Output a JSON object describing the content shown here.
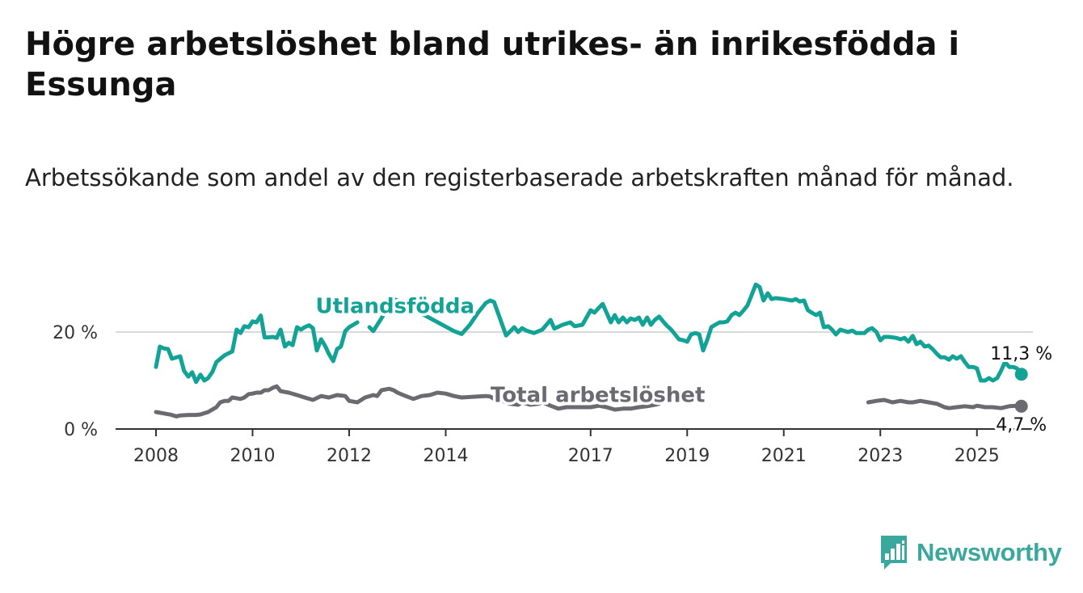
{
  "title": "Högre arbetslöshet bland utrikes- än inrikesfödda i Essunga",
  "subtitle": "Arbetssökande som andel av den registerbaserade arbetskraften månad för månad.",
  "brand": {
    "name": "Newsworthy",
    "icon": "bar-chart-speech-bubble-icon",
    "color": "#3aa89c"
  },
  "chart_data": {
    "type": "line",
    "xlabel": "",
    "ylabel": "",
    "ylim": [
      0,
      30
    ],
    "yticks": [
      0,
      20
    ],
    "ytick_labels": [
      "0 %",
      "20 %"
    ],
    "xlim": [
      2007.9,
      2025.9
    ],
    "xticks": [
      2008,
      2010,
      2012,
      2014,
      2017,
      2019,
      2021,
      2023,
      2025
    ],
    "grid": true,
    "legend": "direct labels on lines",
    "series": [
      {
        "name": "Utlandsfödda",
        "color": "#13a296",
        "label_at": [
          2012.95,
          23.9
        ],
        "end_label": "11,3 %",
        "points": [
          [
            2008.0,
            12.8
          ],
          [
            2008.08,
            17.0
          ],
          [
            2008.17,
            16.6
          ],
          [
            2008.25,
            16.5
          ],
          [
            2008.33,
            14.5
          ],
          [
            2008.5,
            15.0
          ],
          [
            2008.58,
            12.0
          ],
          [
            2008.67,
            10.8
          ],
          [
            2008.75,
            11.7
          ],
          [
            2008.83,
            9.7
          ],
          [
            2008.92,
            11.2
          ],
          [
            2009.0,
            10.0
          ],
          [
            2009.08,
            10.5
          ],
          [
            2009.17,
            11.8
          ],
          [
            2009.25,
            13.8
          ],
          [
            2009.42,
            15.2
          ],
          [
            2009.58,
            16.0
          ],
          [
            2009.67,
            20.5
          ],
          [
            2009.75,
            19.8
          ],
          [
            2009.83,
            21.2
          ],
          [
            2009.92,
            21.0
          ],
          [
            2010.0,
            22.2
          ],
          [
            2010.08,
            22.0
          ],
          [
            2010.17,
            23.4
          ],
          [
            2010.25,
            18.9
          ],
          [
            2010.33,
            18.9
          ],
          [
            2010.42,
            19.0
          ],
          [
            2010.5,
            18.8
          ],
          [
            2010.58,
            20.5
          ],
          [
            2010.67,
            17.0
          ],
          [
            2010.75,
            17.8
          ],
          [
            2010.83,
            17.3
          ],
          [
            2010.92,
            21.0
          ],
          [
            2011.0,
            20.5
          ],
          [
            2011.08,
            21.0
          ],
          [
            2011.17,
            21.4
          ],
          [
            2011.25,
            20.8
          ],
          [
            2011.33,
            16.2
          ],
          [
            2011.42,
            18.5
          ],
          [
            2011.5,
            17.2
          ],
          [
            2011.58,
            15.5
          ],
          [
            2011.67,
            14.0
          ],
          [
            2011.75,
            16.5
          ],
          [
            2011.83,
            17.0
          ],
          [
            2011.92,
            20.2
          ],
          [
            2012.0,
            21.0
          ],
          [
            2012.17,
            22.0
          ]
        ],
        "points_2": [
          [
            2012.42,
            21.0
          ],
          [
            2012.5,
            20.2
          ],
          [
            2012.92,
            26.8
          ],
          [
            2013.0,
            26.5
          ],
          [
            2014.17,
            20.2
          ],
          [
            2014.33,
            19.6
          ],
          [
            2014.5,
            21.5
          ],
          [
            2014.67,
            24.0
          ],
          [
            2014.83,
            26.0
          ],
          [
            2014.92,
            26.5
          ],
          [
            2015.0,
            26.2
          ],
          [
            2015.17,
            21.5
          ],
          [
            2015.25,
            19.3
          ],
          [
            2015.42,
            21.0
          ],
          [
            2015.5,
            20.0
          ],
          [
            2015.58,
            20.8
          ],
          [
            2015.67,
            20.3
          ],
          [
            2015.83,
            19.8
          ],
          [
            2016.0,
            20.5
          ],
          [
            2016.17,
            22.5
          ],
          [
            2016.25,
            20.7
          ],
          [
            2016.42,
            21.5
          ],
          [
            2016.58,
            22.0
          ],
          [
            2016.67,
            21.2
          ],
          [
            2016.83,
            21.5
          ],
          [
            2017.0,
            24.5
          ],
          [
            2017.08,
            24.0
          ],
          [
            2017.17,
            25.0
          ],
          [
            2017.25,
            25.8
          ],
          [
            2017.33,
            24.0
          ],
          [
            2017.42,
            22.0
          ],
          [
            2017.5,
            23.5
          ],
          [
            2017.58,
            22.0
          ],
          [
            2017.67,
            23.0
          ],
          [
            2017.75,
            22.0
          ],
          [
            2017.83,
            22.8
          ],
          [
            2017.92,
            22.5
          ],
          [
            2018.0,
            23.0
          ],
          [
            2018.08,
            21.5
          ],
          [
            2018.17,
            23.0
          ],
          [
            2018.25,
            21.5
          ],
          [
            2018.33,
            22.5
          ],
          [
            2018.42,
            23.2
          ],
          [
            2018.5,
            22.2
          ],
          [
            2018.58,
            21.3
          ],
          [
            2018.67,
            20.5
          ],
          [
            2018.83,
            18.5
          ],
          [
            2018.92,
            18.3
          ],
          [
            2019.0,
            18.0
          ],
          [
            2019.08,
            19.5
          ],
          [
            2019.17,
            19.8
          ],
          [
            2019.25,
            19.5
          ],
          [
            2019.33,
            16.2
          ],
          [
            2019.42,
            18.5
          ],
          [
            2019.5,
            21.0
          ],
          [
            2019.58,
            21.5
          ],
          [
            2019.67,
            22.0
          ],
          [
            2019.75,
            22.0
          ],
          [
            2019.83,
            22.2
          ],
          [
            2019.92,
            23.5
          ],
          [
            2020.0,
            24.0
          ],
          [
            2020.08,
            23.5
          ],
          [
            2020.17,
            24.5
          ],
          [
            2020.25,
            25.5
          ],
          [
            2020.33,
            27.5
          ],
          [
            2020.42,
            29.8
          ],
          [
            2020.5,
            29.3
          ],
          [
            2020.58,
            26.5
          ],
          [
            2020.67,
            28.0
          ],
          [
            2020.75,
            26.8
          ],
          [
            2020.83,
            27.0
          ],
          [
            2021.0,
            26.8
          ],
          [
            2021.17,
            26.5
          ],
          [
            2021.25,
            26.8
          ],
          [
            2021.33,
            26.3
          ],
          [
            2021.42,
            26.5
          ],
          [
            2021.5,
            24.5
          ],
          [
            2021.58,
            24.0
          ],
          [
            2021.67,
            23.5
          ],
          [
            2021.75,
            24.0
          ],
          [
            2021.83,
            21.0
          ],
          [
            2021.92,
            21.2
          ],
          [
            2022.0,
            20.5
          ],
          [
            2022.08,
            19.5
          ],
          [
            2022.17,
            20.5
          ],
          [
            2022.33,
            20.0
          ],
          [
            2022.42,
            20.3
          ],
          [
            2022.5,
            19.8
          ],
          [
            2022.67,
            19.8
          ],
          [
            2022.75,
            20.5
          ],
          [
            2022.83,
            20.8
          ],
          [
            2022.92,
            20.0
          ],
          [
            2023.0,
            18.3
          ],
          [
            2023.08,
            19.0
          ],
          [
            2023.17,
            19.0
          ],
          [
            2023.33,
            18.8
          ],
          [
            2023.42,
            18.5
          ],
          [
            2023.5,
            18.8
          ],
          [
            2023.58,
            18.0
          ],
          [
            2023.67,
            19.2
          ],
          [
            2023.75,
            17.5
          ],
          [
            2023.83,
            18.0
          ],
          [
            2023.92,
            17.0
          ],
          [
            2024.0,
            17.2
          ],
          [
            2024.08,
            16.5
          ],
          [
            2024.17,
            15.5
          ],
          [
            2024.25,
            14.8
          ],
          [
            2024.33,
            14.8
          ],
          [
            2024.42,
            14.3
          ],
          [
            2024.5,
            15.0
          ],
          [
            2024.58,
            14.5
          ],
          [
            2024.67,
            15.0
          ],
          [
            2024.75,
            13.8
          ],
          [
            2024.83,
            12.8
          ],
          [
            2024.92,
            12.8
          ],
          [
            2025.0,
            12.5
          ],
          [
            2025.08,
            10.0
          ],
          [
            2025.17,
            10.0
          ],
          [
            2025.25,
            10.5
          ],
          [
            2025.33,
            10.0
          ],
          [
            2025.42,
            10.5
          ],
          [
            2025.5,
            12.0
          ],
          [
            2025.58,
            13.8
          ],
          [
            2025.67,
            12.8
          ],
          [
            2025.75,
            12.8
          ],
          [
            2025.83,
            12.5
          ],
          [
            2025.92,
            11.3
          ]
        ]
      },
      {
        "name": "Total arbetslöshet",
        "color": "#6b6a70",
        "label_at": [
          2017.15,
          5.6
        ],
        "end_label": "4,7 %",
        "points": [
          [
            2008.0,
            3.5
          ],
          [
            2008.17,
            3.2
          ],
          [
            2008.33,
            2.9
          ],
          [
            2008.42,
            2.6
          ],
          [
            2008.5,
            2.8
          ],
          [
            2008.67,
            2.9
          ],
          [
            2008.83,
            2.9
          ],
          [
            2008.92,
            3.0
          ],
          [
            2009.08,
            3.5
          ],
          [
            2009.25,
            4.5
          ],
          [
            2009.33,
            5.5
          ],
          [
            2009.42,
            5.8
          ],
          [
            2009.5,
            5.8
          ],
          [
            2009.58,
            6.5
          ],
          [
            2009.75,
            6.2
          ],
          [
            2009.83,
            6.5
          ],
          [
            2009.92,
            7.2
          ],
          [
            2010.0,
            7.3
          ],
          [
            2010.08,
            7.5
          ],
          [
            2010.17,
            7.5
          ],
          [
            2010.25,
            8.0
          ],
          [
            2010.33,
            8.0
          ],
          [
            2010.42,
            8.5
          ],
          [
            2010.5,
            8.8
          ],
          [
            2010.58,
            7.8
          ],
          [
            2010.75,
            7.5
          ],
          [
            2010.92,
            7.0
          ],
          [
            2011.08,
            6.5
          ],
          [
            2011.25,
            6.0
          ],
          [
            2011.42,
            6.8
          ],
          [
            2011.58,
            6.5
          ],
          [
            2011.75,
            7.0
          ],
          [
            2011.92,
            6.8
          ],
          [
            2012.0,
            5.8
          ],
          [
            2012.17,
            5.5
          ],
          [
            2012.33,
            6.5
          ],
          [
            2012.5,
            7.0
          ],
          [
            2012.58,
            6.8
          ],
          [
            2012.67,
            8.0
          ],
          [
            2012.83,
            8.3
          ],
          [
            2012.92,
            8.0
          ],
          [
            2013.0,
            7.5
          ],
          [
            2013.17,
            6.8
          ],
          [
            2013.33,
            6.2
          ],
          [
            2013.5,
            6.8
          ],
          [
            2013.67,
            7.0
          ],
          [
            2013.83,
            7.5
          ],
          [
            2014.0,
            7.3
          ],
          [
            2014.17,
            6.8
          ],
          [
            2014.33,
            6.5
          ],
          [
            2014.5,
            6.6
          ],
          [
            2014.67,
            6.7
          ],
          [
            2014.83,
            6.8
          ],
          [
            2014.92,
            6.7
          ],
          [
            2015.0,
            6.2
          ],
          [
            2015.17,
            5.8
          ],
          [
            2015.33,
            5.2
          ],
          [
            2015.5,
            5.0
          ],
          [
            2015.58,
            5.5
          ],
          [
            2015.75,
            5.0
          ],
          [
            2015.92,
            5.2
          ],
          [
            2016.0,
            5.5
          ],
          [
            2016.08,
            5.2
          ],
          [
            2016.17,
            4.8
          ],
          [
            2016.33,
            4.2
          ],
          [
            2016.5,
            4.5
          ],
          [
            2016.67,
            4.5
          ],
          [
            2016.83,
            4.5
          ],
          [
            2017.0,
            4.5
          ],
          [
            2017.17,
            4.8
          ],
          [
            2017.33,
            4.5
          ],
          [
            2017.5,
            4.0
          ],
          [
            2017.67,
            4.2
          ],
          [
            2017.83,
            4.2
          ],
          [
            2018.0,
            4.5
          ],
          [
            2018.17,
            4.7
          ],
          [
            2018.33,
            5.0
          ],
          [
            2018.42,
            5.2
          ]
        ],
        "points_2": [
          [
            2022.75,
            5.5
          ],
          [
            2022.92,
            5.8
          ],
          [
            2023.08,
            6.0
          ],
          [
            2023.25,
            5.5
          ],
          [
            2023.42,
            5.8
          ],
          [
            2023.58,
            5.5
          ],
          [
            2023.67,
            5.5
          ],
          [
            2023.83,
            5.8
          ],
          [
            2024.0,
            5.5
          ],
          [
            2024.17,
            5.2
          ],
          [
            2024.33,
            4.5
          ],
          [
            2024.42,
            4.3
          ],
          [
            2024.58,
            4.5
          ],
          [
            2024.75,
            4.7
          ],
          [
            2024.92,
            4.5
          ],
          [
            2025.0,
            4.8
          ],
          [
            2025.17,
            4.5
          ],
          [
            2025.33,
            4.5
          ],
          [
            2025.5,
            4.3
          ],
          [
            2025.67,
            4.7
          ],
          [
            2025.83,
            4.8
          ],
          [
            2025.92,
            4.7
          ]
        ]
      }
    ]
  }
}
